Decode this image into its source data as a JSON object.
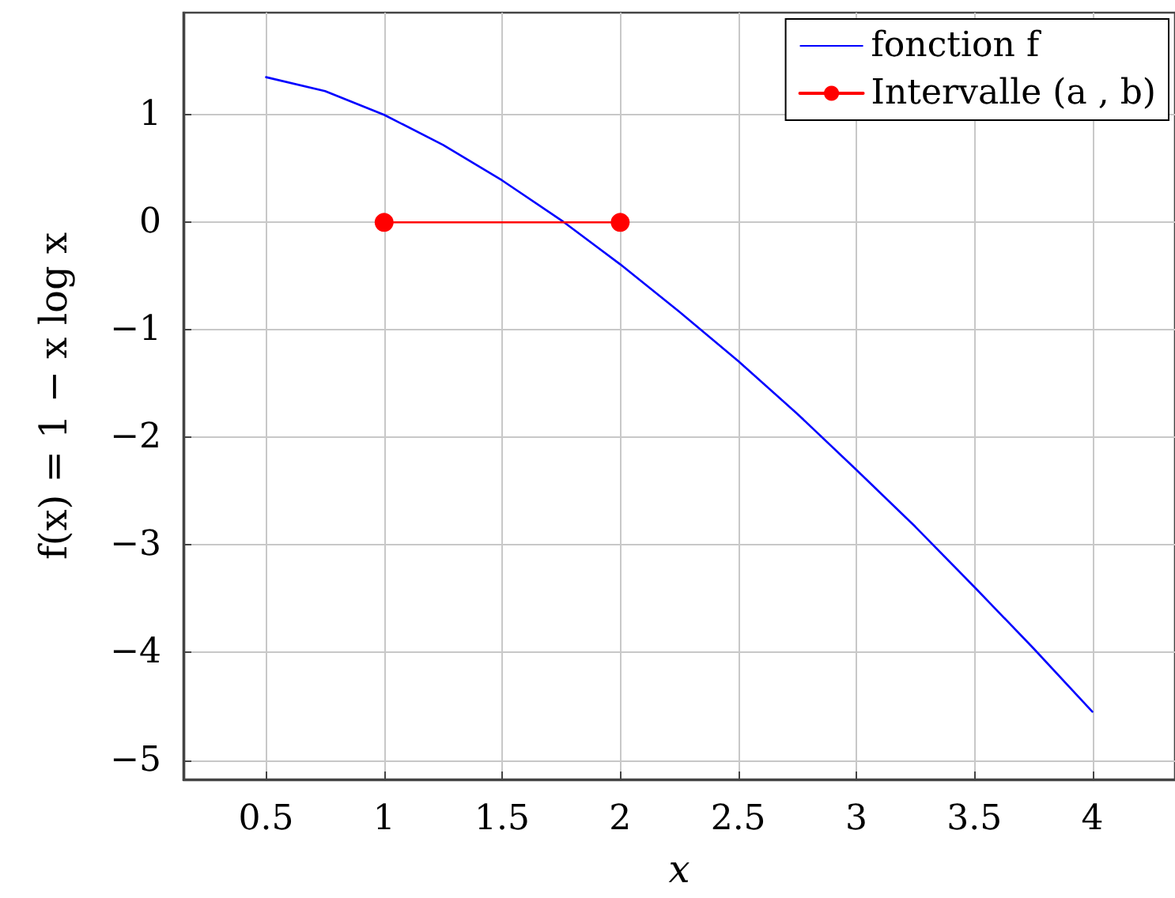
{
  "chart_data": {
    "type": "line",
    "xlabel": "x",
    "ylabel": "f(x) = 1 − x log x",
    "xlim": [
      0.15,
      4.35
    ],
    "ylim": [
      -5.18,
      1.95
    ],
    "xticks": [
      0.5,
      1,
      1.5,
      2,
      2.5,
      3,
      3.5,
      4
    ],
    "yticks": [
      -5,
      -4,
      -3,
      -2,
      -1,
      0,
      1
    ],
    "grid": true,
    "legend": "top right",
    "line_style": "solid",
    "series": [
      {
        "name": "fonction f",
        "color": "#0000ff",
        "marker": "none",
        "x": [
          0.5,
          0.75,
          1,
          1.25,
          1.5,
          1.75,
          2,
          2.25,
          2.5,
          2.75,
          3,
          3.25,
          3.5,
          3.75,
          4
        ],
        "values": [
          1.35,
          1.22,
          1,
          0.72,
          0.39,
          0.02,
          -0.39,
          -0.83,
          -1.29,
          -1.78,
          -2.3,
          -2.83,
          -3.39,
          -3.96,
          -4.55
        ]
      },
      {
        "name": "Intervalle (a , b)",
        "color": "#ff0000",
        "marker": "circle",
        "x": [
          1,
          2
        ],
        "values": [
          0,
          0
        ]
      }
    ]
  }
}
